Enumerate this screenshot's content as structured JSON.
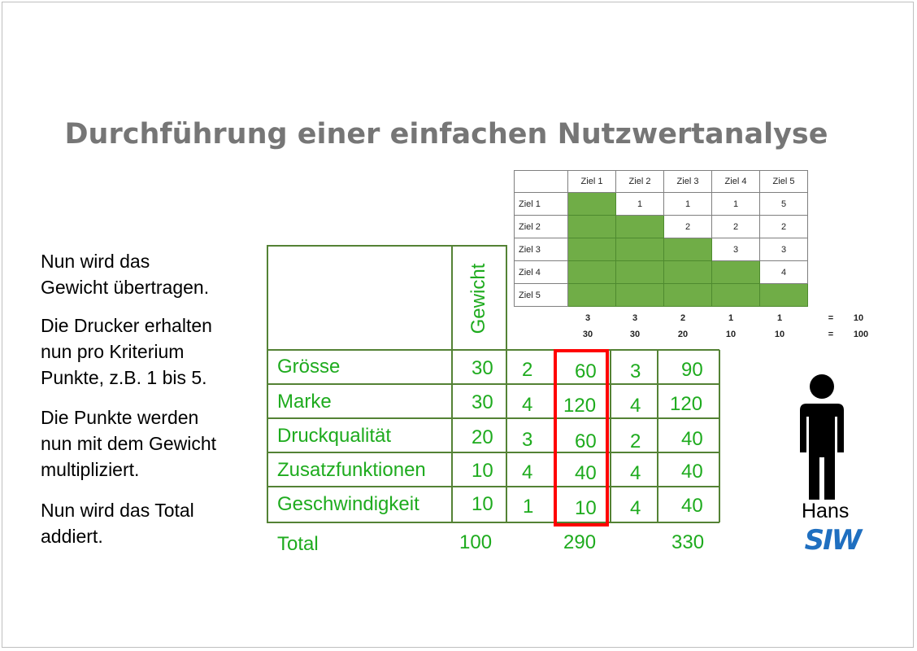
{
  "slide": {
    "title": "Durchführung einer einfachen Nutzwertanalyse"
  },
  "left_text": [
    {
      "lines": [
        "Nun wird das",
        "Gewicht übertragen."
      ]
    },
    {
      "lines": [
        "Die Drucker erhalten",
        "nun pro Kriterium",
        "Punkte, z.B. 1 bis 5."
      ]
    },
    {
      "lines": [
        "Die Punkte werden",
        "nun mit dem Gewicht",
        "multipliziert."
      ]
    },
    {
      "lines": [
        "Nun wird das Total",
        "addiert."
      ]
    }
  ],
  "pairwise": {
    "header": [
      "Ziel 1",
      "Ziel 2",
      "Ziel 3",
      "Ziel 4",
      "Ziel 5"
    ],
    "rows": [
      {
        "label": "Ziel 1",
        "cells": [
          "",
          "1",
          "1",
          "1",
          "5"
        ]
      },
      {
        "label": "Ziel 2",
        "cells": [
          "",
          "",
          "2",
          "2",
          "2"
        ]
      },
      {
        "label": "Ziel 3",
        "cells": [
          "",
          "",
          "",
          "3",
          "3"
        ]
      },
      {
        "label": "Ziel 4",
        "cells": [
          "",
          "",
          "",
          "",
          "4"
        ]
      },
      {
        "label": "Ziel 5",
        "cells": [
          "",
          "",
          "",
          "",
          ""
        ]
      }
    ],
    "green_cells": [
      [
        0,
        0
      ],
      [
        1,
        0
      ],
      [
        1,
        1
      ],
      [
        2,
        0
      ],
      [
        2,
        1
      ],
      [
        2,
        2
      ],
      [
        3,
        0
      ],
      [
        3,
        1
      ],
      [
        3,
        2
      ],
      [
        3,
        3
      ],
      [
        4,
        0
      ],
      [
        4,
        1
      ],
      [
        4,
        2
      ],
      [
        4,
        3
      ],
      [
        4,
        4
      ]
    ],
    "sums_row1": [
      "3",
      "3",
      "2",
      "1",
      "1",
      "=",
      "10"
    ],
    "sums_row2": [
      "30",
      "30",
      "20",
      "10",
      "10",
      "=",
      "100"
    ]
  },
  "matrix": {
    "weight_header": "Gewicht",
    "rows": [
      {
        "criterion": "Grösse",
        "weight": "30",
        "p1": "2",
        "v1": "60",
        "p2": "3",
        "v2": "90"
      },
      {
        "criterion": "Marke",
        "weight": "30",
        "p1": "4",
        "v1": "120",
        "p2": "4",
        "v2": "120"
      },
      {
        "criterion": "Druckqualität",
        "weight": "20",
        "p1": "3",
        "v1": "60",
        "p2": "2",
        "v2": "40"
      },
      {
        "criterion": "Zusatzfunktionen",
        "weight": "10",
        "p1": "4",
        "v1": "40",
        "p2": "4",
        "v2": "40"
      },
      {
        "criterion": "Geschwindigkeit",
        "weight": "10",
        "p1": "1",
        "v1": "10",
        "p2": "4",
        "v2": "40"
      }
    ],
    "total": {
      "label": "Total",
      "weight": "100",
      "v1": "290",
      "v2": "330"
    }
  },
  "person": {
    "name": "Hans"
  },
  "logo": {
    "text": "SIW",
    "color": "#1f6fc0"
  },
  "colors": {
    "accent_green": "#1eab1e",
    "grid_green": "#548235",
    "cell_fill": "#70ad47",
    "highlight": "#ff0000"
  }
}
